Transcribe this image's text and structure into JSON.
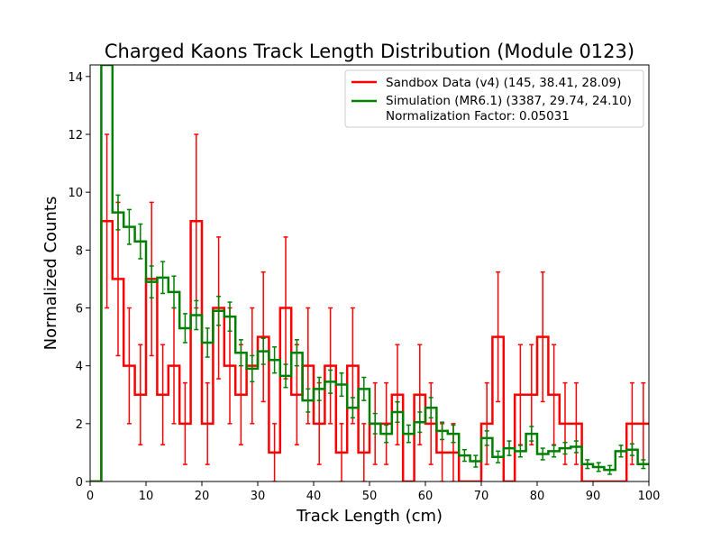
{
  "chart_data": {
    "type": "histogram-step",
    "title": "Charged Kaons Track Length Distribution (Module 0123)",
    "xlabel": "Track Length (cm)",
    "ylabel": "Normalized Counts",
    "xlim": [
      0,
      100
    ],
    "ylim": [
      0,
      14.4
    ],
    "xticks": [
      "0",
      "10",
      "20",
      "30",
      "40",
      "50",
      "60",
      "70",
      "80",
      "90",
      "100"
    ],
    "yticks": [
      "0",
      "2",
      "4",
      "6",
      "8",
      "10",
      "12",
      "14"
    ],
    "grid": false,
    "legend_position": "top-right",
    "bin_width": 2,
    "bin_edges_start": 0,
    "series": [
      {
        "name": "Sandbox Data (v4) (145, 38.41, 28.09)",
        "color": "#ff0000",
        "values": [
          0,
          9,
          7,
          4,
          3,
          7,
          3,
          4,
          2,
          9,
          2,
          6,
          4,
          3,
          4,
          5,
          1,
          6,
          3,
          4,
          2,
          4,
          1,
          4,
          1,
          2,
          2,
          3,
          0,
          3,
          2,
          1,
          1,
          0,
          0,
          2,
          5,
          0,
          3,
          3,
          5,
          3,
          2,
          2,
          0,
          0,
          0,
          0,
          2,
          2
        ],
        "errors": [
          0,
          3,
          2.65,
          2,
          1.73,
          2.65,
          1.73,
          2,
          1.41,
          3,
          1.41,
          2.45,
          2,
          1.73,
          2,
          2.24,
          1,
          2.45,
          1.73,
          2,
          1.41,
          2,
          1,
          2,
          1,
          1.41,
          1.41,
          1.73,
          0,
          1.73,
          1.41,
          1,
          1,
          0,
          0,
          1.41,
          2.24,
          0,
          1.73,
          1.73,
          2.24,
          1.73,
          1.41,
          1.41,
          0,
          0,
          0,
          0,
          1.41,
          1.41
        ]
      },
      {
        "name": "Simulation (MR6.1) (3387, 29.74, 24.10)",
        "color": "#008000",
        "values": [
          0,
          14.4,
          9.3,
          8.8,
          8.3,
          6.9,
          7.05,
          6.55,
          5.3,
          5.75,
          4.8,
          5.9,
          5.7,
          4.45,
          3.9,
          4.5,
          4.2,
          3.65,
          4.45,
          2.8,
          3.2,
          3.45,
          3.35,
          2.55,
          3.2,
          2,
          1.65,
          2.4,
          1.65,
          2.05,
          2.55,
          1.75,
          1.65,
          0.9,
          0.7,
          1.5,
          0.85,
          1.15,
          1.05,
          1.65,
          0.95,
          1.05,
          1.15,
          1.2,
          0.6,
          0.5,
          0.4,
          1.05,
          1.1,
          0.6
        ],
        "errors": [
          0,
          0,
          0.6,
          0.6,
          0.6,
          0.55,
          0.55,
          0.55,
          0.5,
          0.5,
          0.5,
          0.5,
          0.5,
          0.45,
          0.45,
          0.45,
          0.45,
          0.4,
          0.45,
          0.4,
          0.4,
          0.4,
          0.4,
          0.35,
          0.4,
          0.35,
          0.3,
          0.35,
          0.3,
          0.35,
          0.35,
          0.3,
          0.3,
          0.2,
          0.2,
          0.25,
          0.2,
          0.25,
          0.2,
          0.25,
          0.2,
          0.2,
          0.2,
          0.2,
          0.15,
          0.15,
          0.15,
          0.2,
          0.2,
          0.15
        ]
      }
    ],
    "legend_extra": "Normalization Factor: 0.05031"
  }
}
